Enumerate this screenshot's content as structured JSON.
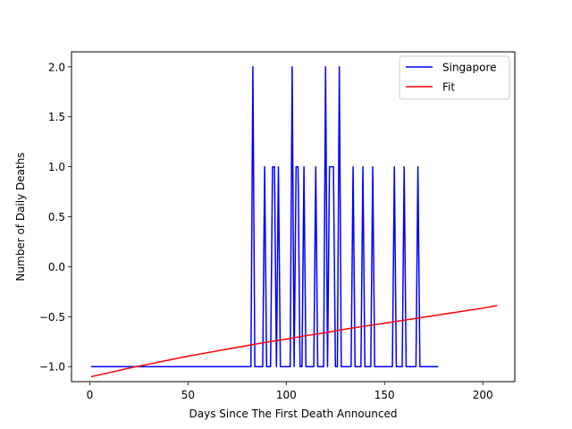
{
  "chart_data": {
    "type": "line",
    "title": "",
    "xlabel": "Days Since The First Death Announced",
    "ylabel": "Number of Daily Deaths",
    "xlim": [
      -9.3,
      216.3
    ],
    "ylim": [
      -1.15,
      2.15
    ],
    "xticks": [
      0,
      50,
      100,
      150,
      200
    ],
    "yticks": [
      -1.0,
      -0.5,
      0.0,
      0.5,
      1.0,
      1.5,
      2.0
    ],
    "ytick_labels": [
      "−1.0",
      "−0.5",
      "0.0",
      "0.5",
      "1.0",
      "1.5",
      "2.0"
    ],
    "grid": false,
    "legend_position": "top-right",
    "series": [
      {
        "name": "Singapore",
        "color": "#0000ff",
        "x": [
          1,
          82,
          83,
          84,
          88,
          89,
          90,
          92,
          93,
          94,
          95,
          96,
          97,
          98,
          102,
          103,
          104,
          105,
          106,
          107,
          108,
          109,
          110,
          111,
          114,
          115,
          116,
          119,
          120,
          121,
          122,
          123,
          124,
          125,
          126,
          127,
          128,
          129,
          130,
          133,
          134,
          135,
          138,
          139,
          140,
          143,
          144,
          145,
          154,
          155,
          156,
          159,
          160,
          161,
          166,
          167,
          168,
          177
        ],
        "y": [
          -1,
          -1,
          2,
          -1,
          -1,
          1,
          -1,
          -1,
          1,
          1,
          -1,
          1,
          -1,
          -1,
          -1,
          2,
          -1,
          1,
          1,
          -1,
          -1,
          1,
          -1,
          -1,
          -1,
          1,
          -1,
          -1,
          2,
          -1,
          1,
          1,
          1,
          -1,
          -1,
          2,
          -1,
          -1,
          -1,
          -1,
          1,
          -1,
          -1,
          1,
          -1,
          -1,
          1,
          -1,
          -1,
          1,
          -1,
          -1,
          1,
          -1,
          -1,
          1,
          -1,
          -1
        ]
      },
      {
        "name": "Fit",
        "color": "#ff0000",
        "x": [
          1,
          10,
          20,
          30,
          40,
          50,
          60,
          70,
          80,
          90,
          100,
          110,
          120,
          130,
          140,
          150,
          160,
          170,
          180,
          190,
          200,
          207
        ],
        "y": [
          -1.1,
          -1.06,
          -1.015,
          -0.975,
          -0.935,
          -0.895,
          -0.86,
          -0.825,
          -0.79,
          -0.755,
          -0.725,
          -0.69,
          -0.66,
          -0.625,
          -0.595,
          -0.565,
          -0.535,
          -0.505,
          -0.475,
          -0.445,
          -0.415,
          -0.39
        ]
      }
    ]
  }
}
